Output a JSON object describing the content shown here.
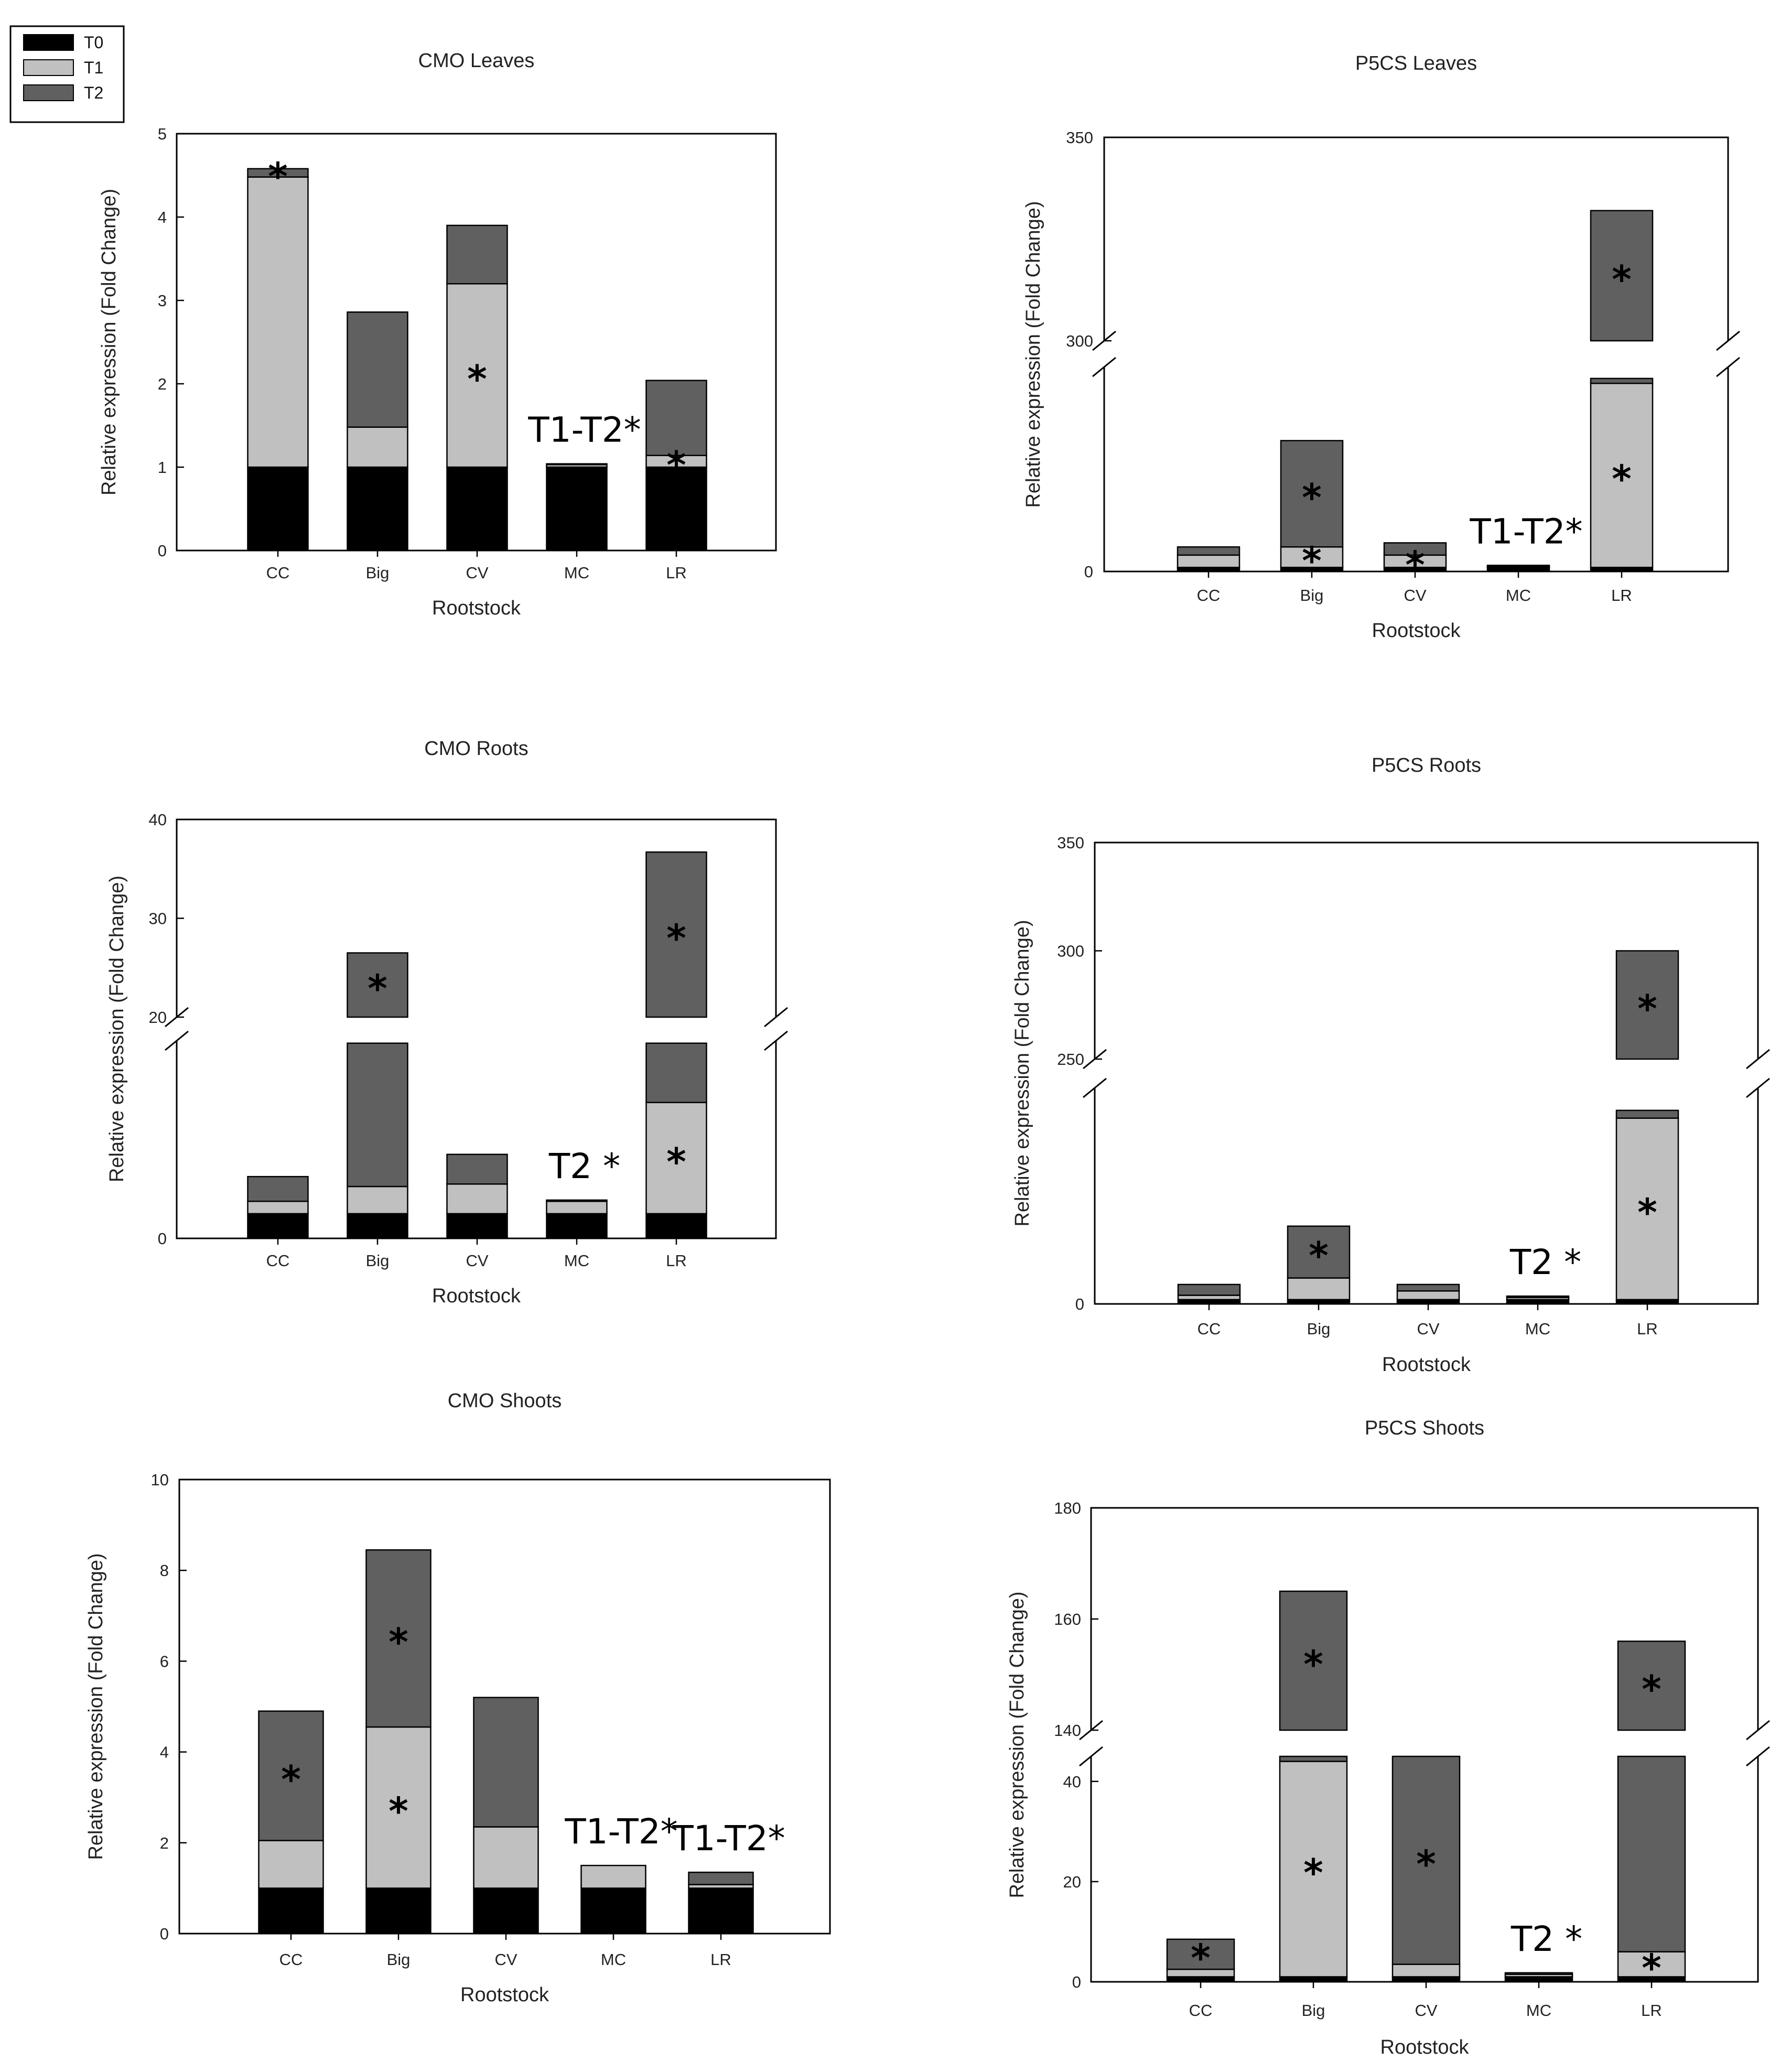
{
  "legend": {
    "entries": [
      {
        "name": "T0",
        "color": "#000000"
      },
      {
        "name": "T1",
        "color": "#c0c0c0"
      },
      {
        "name": "T2",
        "color": "#606060"
      }
    ]
  },
  "chart_data": [
    {
      "id": "cmo-leaves",
      "type": "bar",
      "stacked": true,
      "title": "CMO Leaves",
      "xlabel": "Rootstock",
      "ylabel": "Relative expression (Fold Change)",
      "categories": [
        "CC",
        "Big",
        "CV",
        "MC",
        "LR"
      ],
      "series": [
        {
          "name": "T0",
          "values": [
            1.0,
            1.0,
            1.0,
            1.0,
            1.0
          ]
        },
        {
          "name": "T1",
          "values": [
            3.48,
            0.48,
            2.2,
            0.03,
            0.14
          ]
        },
        {
          "name": "T2",
          "values": [
            0.1,
            1.38,
            0.7,
            0.01,
            0.9
          ]
        }
      ],
      "ylim": [
        0,
        5
      ],
      "yticks": [
        "0",
        "1",
        "2",
        "3",
        "4",
        "5"
      ],
      "stars": [
        {
          "category": "CC",
          "series": "T2"
        },
        {
          "category": "CV",
          "series": "T1"
        },
        {
          "category": "LR",
          "series": "T1"
        }
      ],
      "annotations": [
        {
          "category": "MC",
          "text": "T1-T2*"
        }
      ]
    },
    {
      "id": "p5cs-leaves",
      "type": "bar",
      "stacked": true,
      "title": "P5CS Leaves",
      "xlabel": "Rootstock",
      "ylabel": "Relative expression (Fold Change)",
      "categories": [
        "CC",
        "Big",
        "CV",
        "MC",
        "LR"
      ],
      "series": [
        {
          "name": "T0",
          "values": [
            1,
            1,
            1,
            1,
            1
          ]
        },
        {
          "name": "T1",
          "values": [
            3,
            5,
            3,
            0.2,
            45
          ]
        },
        {
          "name": "T2",
          "values": [
            2,
            26,
            3,
            0.3,
            1.2
          ]
        }
      ],
      "ylim": [
        0,
        350
      ],
      "axis_break": [
        50,
        300
      ],
      "yticks": [
        "0",
        "300",
        "350"
      ],
      "broken_bars": [
        {
          "category": "LR",
          "series": "T2",
          "range": [
            300,
            332
          ]
        }
      ],
      "stars": [
        {
          "category": "Big",
          "series": "T2"
        },
        {
          "category": "Big",
          "series": "T1"
        },
        {
          "category": "CV",
          "series": "T1"
        },
        {
          "category": "LR",
          "series": "T1"
        },
        {
          "category": "LR",
          "series": "T2"
        }
      ],
      "annotations": [
        {
          "category": "MC",
          "text": "T1-T2*"
        }
      ]
    },
    {
      "id": "cmo-roots",
      "type": "bar",
      "stacked": true,
      "title": "CMO Roots",
      "xlabel": "Rootstock",
      "ylabel": "Relative expression (Fold Change)",
      "categories": [
        "CC",
        "Big",
        "CV",
        "MC",
        "LR"
      ],
      "series": [
        {
          "name": "T0",
          "values": [
            1,
            1,
            1,
            1,
            1
          ]
        },
        {
          "name": "T1",
          "values": [
            0.5,
            1.1,
            1.2,
            0.5,
            4.5
          ]
        },
        {
          "name": "T2",
          "values": [
            1.0,
            5.8,
            1.2,
            0.05,
            2.4
          ]
        }
      ],
      "ylim": [
        0,
        40
      ],
      "axis_break": [
        8,
        20
      ],
      "yticks": [
        "0",
        "20",
        "30",
        "40"
      ],
      "broken_bars": [
        {
          "category": "Big",
          "series": "T2",
          "range": [
            20,
            26.5
          ]
        },
        {
          "category": "LR",
          "series": "T2",
          "range": [
            20,
            36.7
          ]
        }
      ],
      "stars": [
        {
          "category": "Big",
          "series": "T2"
        },
        {
          "category": "LR",
          "series": "T2"
        },
        {
          "category": "LR",
          "series": "T1"
        }
      ],
      "annotations": [
        {
          "category": "MC",
          "text": "T2 *"
        }
      ]
    },
    {
      "id": "p5cs-roots",
      "type": "bar",
      "stacked": true,
      "title": "P5CS Roots",
      "xlabel": "Rootstock",
      "ylabel": "Relative expression (Fold Change)",
      "categories": [
        "CC",
        "Big",
        "CV",
        "MC",
        "LR"
      ],
      "series": [
        {
          "name": "T0",
          "values": [
            1,
            1,
            1,
            1,
            1
          ]
        },
        {
          "name": "T1",
          "values": [
            1,
            5,
            2,
            0.5,
            42
          ]
        },
        {
          "name": "T2",
          "values": [
            2.5,
            12,
            1.5,
            0.3,
            1.8
          ]
        }
      ],
      "ylim": [
        0,
        350
      ],
      "axis_break": [
        50,
        250
      ],
      "yticks": [
        "0",
        "250",
        "300",
        "350"
      ],
      "broken_bars": [
        {
          "category": "LR",
          "series": "T2",
          "range": [
            250,
            300
          ]
        }
      ],
      "stars": [
        {
          "category": "Big",
          "series": "T2"
        },
        {
          "category": "LR",
          "series": "T2"
        },
        {
          "category": "LR",
          "series": "T1"
        }
      ],
      "annotations": [
        {
          "category": "MC",
          "text": "T2 *"
        }
      ]
    },
    {
      "id": "cmo-shoots",
      "type": "bar",
      "stacked": true,
      "title": "CMO Shoots",
      "xlabel": "Rootstock",
      "ylabel": "Relative expression (Fold Change)",
      "categories": [
        "CC",
        "Big",
        "CV",
        "MC",
        "LR"
      ],
      "series": [
        {
          "name": "T0",
          "values": [
            1,
            1,
            1,
            1,
            1
          ]
        },
        {
          "name": "T1",
          "values": [
            1.05,
            3.55,
            1.35,
            0.5,
            0.08
          ]
        },
        {
          "name": "T2",
          "values": [
            2.85,
            3.9,
            2.85,
            0.0,
            0.27
          ]
        }
      ],
      "ylim": [
        0,
        10
      ],
      "yticks": [
        "0",
        "2",
        "4",
        "6",
        "8",
        "10"
      ],
      "stars": [
        {
          "category": "CC",
          "series": "T2"
        },
        {
          "category": "Big",
          "series": "T2"
        },
        {
          "category": "Big",
          "series": "T1"
        }
      ],
      "annotations": [
        {
          "category": "MC",
          "text": "T1-T2*"
        },
        {
          "category": "LR",
          "text": "T1-T2*"
        }
      ]
    },
    {
      "id": "p5cs-shoots",
      "type": "bar",
      "stacked": true,
      "title": "P5CS Shoots",
      "xlabel": "Rootstock",
      "ylabel": "Relative expression (Fold Change)",
      "categories": [
        "CC",
        "Big",
        "CV",
        "MC",
        "LR"
      ],
      "series": [
        {
          "name": "T0",
          "values": [
            1,
            1,
            1,
            1,
            1
          ]
        },
        {
          "name": "T1",
          "values": [
            1.5,
            43,
            2.5,
            0.5,
            5
          ]
        },
        {
          "name": "T2",
          "values": [
            6,
            1,
            41.5,
            0.3,
            39
          ]
        }
      ],
      "ylim": [
        0,
        180
      ],
      "axis_break": [
        45,
        140
      ],
      "yticks": [
        "0",
        "20",
        "40",
        "140",
        "160",
        "180"
      ],
      "broken_bars": [
        {
          "category": "Big",
          "series": "T2",
          "range": [
            140,
            165
          ]
        },
        {
          "category": "LR",
          "series": "T2",
          "range": [
            140,
            156
          ]
        }
      ],
      "stars": [
        {
          "category": "CC",
          "series": "T2"
        },
        {
          "category": "Big",
          "series": "T2"
        },
        {
          "category": "Big",
          "series": "T1"
        },
        {
          "category": "CV",
          "series": "T2"
        },
        {
          "category": "LR",
          "series": "T2"
        },
        {
          "category": "LR",
          "series": "T1"
        }
      ],
      "annotations": [
        {
          "category": "MC",
          "text": "T2 *"
        }
      ]
    }
  ]
}
